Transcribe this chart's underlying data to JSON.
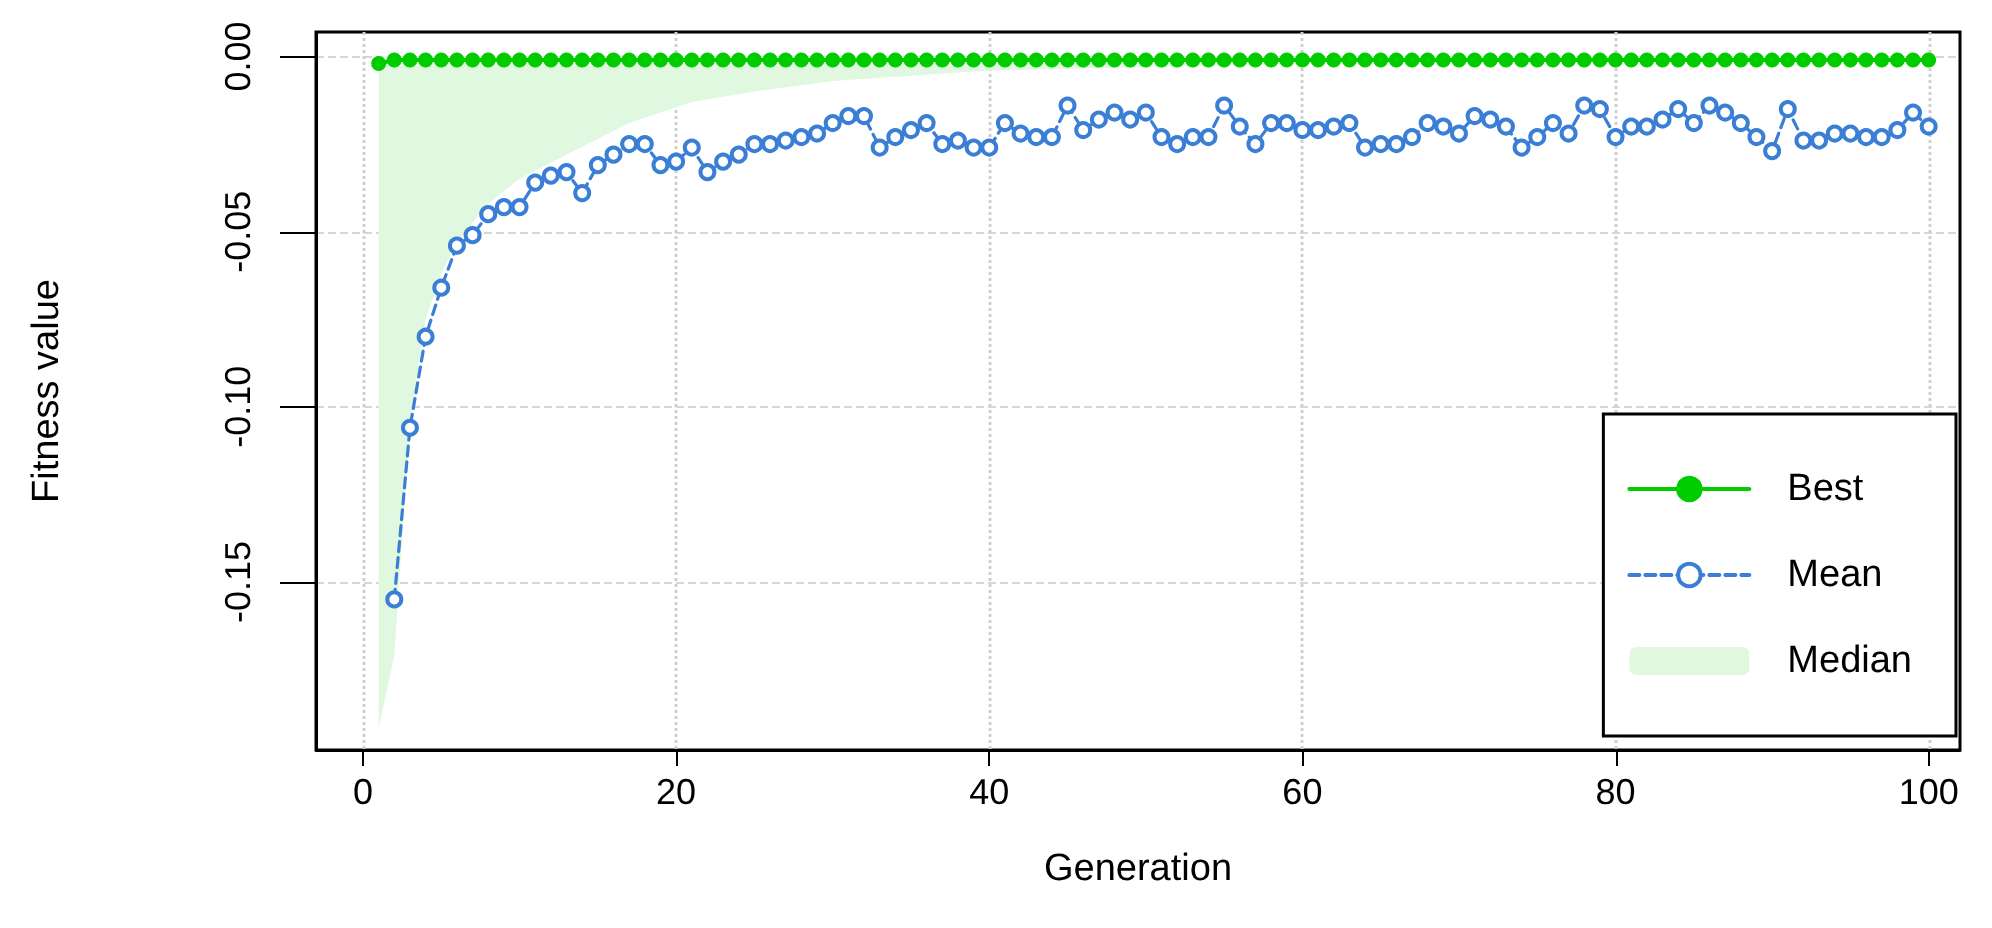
{
  "chart_data": {
    "type": "line",
    "xlabel": "Generation",
    "ylabel": "Fitness value",
    "xlim": [
      -3,
      102
    ],
    "ylim": [
      -0.198,
      0.007
    ],
    "xticks": [
      0,
      20,
      40,
      60,
      80,
      100
    ],
    "yticks": [
      {
        "value": 0,
        "label": "0.00"
      },
      {
        "value": -0.05,
        "label": "-0.05"
      },
      {
        "value": -0.1,
        "label": "-0.10"
      },
      {
        "value": -0.15,
        "label": "-0.15"
      }
    ],
    "grid": true,
    "legend": "bottom right",
    "x": [
      1,
      2,
      3,
      4,
      5,
      6,
      7,
      8,
      9,
      10,
      11,
      12,
      13,
      14,
      15,
      16,
      17,
      18,
      19,
      20,
      21,
      22,
      23,
      24,
      25,
      26,
      27,
      28,
      29,
      30,
      31,
      32,
      33,
      34,
      35,
      36,
      37,
      38,
      39,
      40,
      41,
      42,
      43,
      44,
      45,
      46,
      47,
      48,
      49,
      50,
      51,
      52,
      53,
      54,
      55,
      56,
      57,
      58,
      59,
      60,
      61,
      62,
      63,
      64,
      65,
      66,
      67,
      68,
      69,
      70,
      71,
      72,
      73,
      74,
      75,
      76,
      77,
      78,
      79,
      80,
      81,
      82,
      83,
      84,
      85,
      86,
      87,
      88,
      89,
      90,
      91,
      92,
      93,
      94,
      95,
      96,
      97,
      98,
      99,
      100
    ],
    "series": [
      {
        "name": "Best",
        "color": "#00cc00",
        "marker": "circle",
        "line_style": "solid",
        "values": [
          -0.002,
          -0.001,
          -0.001,
          -0.001,
          -0.001,
          -0.001,
          -0.001,
          -0.001,
          -0.001,
          -0.001,
          -0.001,
          -0.001,
          -0.001,
          -0.001,
          -0.001,
          -0.001,
          -0.001,
          -0.001,
          -0.001,
          -0.001,
          -0.001,
          -0.001,
          -0.001,
          -0.001,
          -0.001,
          -0.001,
          -0.001,
          -0.001,
          -0.001,
          -0.001,
          -0.001,
          -0.001,
          -0.001,
          -0.001,
          -0.001,
          -0.001,
          -0.001,
          -0.001,
          -0.001,
          -0.001,
          -0.001,
          -0.001,
          -0.001,
          -0.001,
          -0.001,
          -0.001,
          -0.001,
          -0.001,
          -0.001,
          -0.001,
          -0.001,
          -0.001,
          -0.001,
          -0.001,
          -0.001,
          -0.001,
          -0.001,
          -0.001,
          -0.001,
          -0.001,
          -0.001,
          -0.001,
          -0.001,
          -0.001,
          -0.001,
          -0.001,
          -0.001,
          -0.001,
          -0.001,
          -0.001,
          -0.001,
          -0.001,
          -0.001,
          -0.001,
          -0.001,
          -0.001,
          -0.001,
          -0.001,
          -0.001,
          -0.001,
          -0.001,
          -0.001,
          -0.001,
          -0.001,
          -0.001,
          -0.001,
          -0.001,
          -0.001,
          -0.001,
          -0.001,
          -0.001,
          -0.001,
          -0.001,
          -0.001,
          -0.001,
          -0.001,
          -0.001,
          -0.001,
          -0.001,
          -0.001
        ]
      },
      {
        "name": "Mean",
        "color": "#3a7fd5",
        "marker": "circle",
        "line_style": "dashed",
        "values": [
          null,
          -0.155,
          -0.106,
          -0.08,
          -0.066,
          -0.054,
          -0.051,
          -0.045,
          -0.043,
          -0.043,
          -0.036,
          -0.034,
          -0.033,
          -0.039,
          -0.031,
          -0.028,
          -0.025,
          -0.025,
          -0.031,
          -0.03,
          -0.026,
          -0.033,
          -0.03,
          -0.028,
          -0.025,
          -0.025,
          -0.024,
          -0.023,
          -0.022,
          -0.019,
          -0.017,
          -0.017,
          -0.026,
          -0.023,
          -0.021,
          -0.019,
          -0.025,
          -0.024,
          -0.026,
          -0.026,
          -0.019,
          -0.022,
          -0.023,
          -0.023,
          -0.014,
          -0.021,
          -0.018,
          -0.016,
          -0.018,
          -0.016,
          -0.023,
          -0.025,
          -0.023,
          -0.023,
          -0.014,
          -0.02,
          -0.025,
          -0.019,
          -0.019,
          -0.021,
          -0.021,
          -0.02,
          -0.019,
          -0.026,
          -0.025,
          -0.025,
          -0.023,
          -0.019,
          -0.02,
          -0.022,
          -0.017,
          -0.018,
          -0.02,
          -0.026,
          -0.023,
          -0.019,
          -0.022,
          -0.014,
          -0.015,
          -0.023,
          -0.02,
          -0.02,
          -0.018,
          -0.015,
          -0.019,
          -0.014,
          -0.016,
          -0.019,
          -0.023,
          -0.027,
          -0.015,
          -0.024,
          -0.024,
          -0.022,
          -0.022,
          -0.023,
          -0.023,
          -0.021,
          -0.016,
          -0.02
        ]
      },
      {
        "name": "Median",
        "type": "area",
        "color": "#e0f8e0",
        "x": [
          1,
          2,
          3,
          4,
          5,
          6,
          8,
          10,
          13,
          17,
          21,
          25,
          30,
          40,
          50,
          60,
          100
        ],
        "values": [
          -0.192,
          -0.171,
          -0.105,
          -0.075,
          -0.062,
          -0.053,
          -0.042,
          -0.035,
          -0.028,
          -0.019,
          -0.013,
          -0.01,
          -0.007,
          -0.004,
          -0.003,
          -0.002,
          -0.001
        ]
      }
    ]
  }
}
